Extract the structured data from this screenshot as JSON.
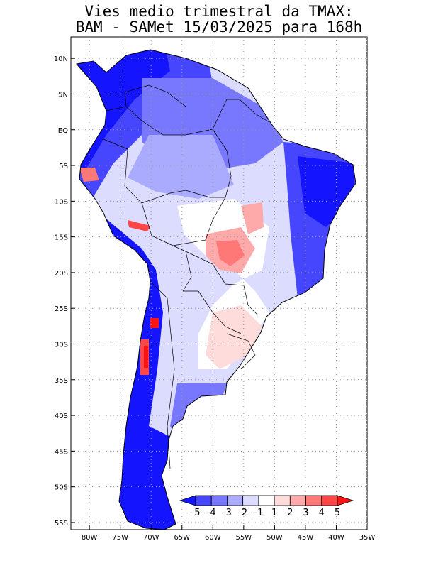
{
  "title": {
    "line1": "Vies medio trimestral da TMAX:",
    "line2": "BAM - SAMet 15/03/2025  para 168h"
  },
  "map": {
    "lon_range": [
      -83,
      -35
    ],
    "lat_range": [
      -56,
      13
    ],
    "lat_ticks": [
      "10N",
      "5N",
      "EQ",
      "5S",
      "10S",
      "15S",
      "20S",
      "25S",
      "30S",
      "35S",
      "40S",
      "45S",
      "50S",
      "55S"
    ],
    "lon_ticks": [
      "80W",
      "75W",
      "70W",
      "65W",
      "60W",
      "55W",
      "50W",
      "45W",
      "40W",
      "35W"
    ]
  },
  "colorbar": {
    "labels": [
      "-5",
      "-4",
      "-3",
      "-2",
      "-1",
      "1",
      "2",
      "3",
      "4",
      "5"
    ],
    "colors": [
      "#1414ff",
      "#4646ff",
      "#7878ff",
      "#aaaaff",
      "#dcdcff",
      "#ffffff",
      "#ffdcdc",
      "#ffaaaa",
      "#ff7878",
      "#ff4646",
      "#ff1414"
    ]
  }
}
